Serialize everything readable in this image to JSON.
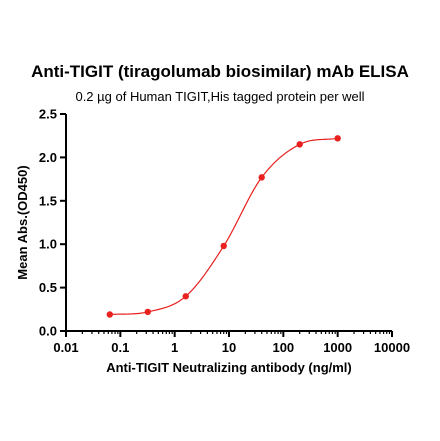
{
  "chart_data": {
    "type": "line",
    "title": "Anti-TIGIT (tiragolumab biosimilar) mAb ELISA",
    "subtitle": "0.2 µg of Human TIGIT,His tagged protein per well",
    "xlabel": "Anti-TIGIT Neutralizing antibody (ng/ml)",
    "ylabel": "Mean Abs.(OD450)",
    "x_scale": "log",
    "xlim": [
      0.01,
      10000
    ],
    "ylim": [
      0.0,
      2.5
    ],
    "x_ticks": [
      "0.01",
      "0.1",
      "1",
      "10",
      "100",
      "1000",
      "10000"
    ],
    "y_ticks": [
      "0.0",
      "0.5",
      "1.0",
      "1.5",
      "2.0",
      "2.5"
    ],
    "grid": false,
    "legend": false,
    "series": [
      {
        "x": [
          0.064,
          0.32,
          1.6,
          8,
          40,
          200,
          1000
        ],
        "y": [
          0.19,
          0.22,
          0.4,
          0.98,
          1.77,
          2.15,
          2.22
        ],
        "color": "#e8201e",
        "fit_curve": "4PL"
      }
    ]
  }
}
